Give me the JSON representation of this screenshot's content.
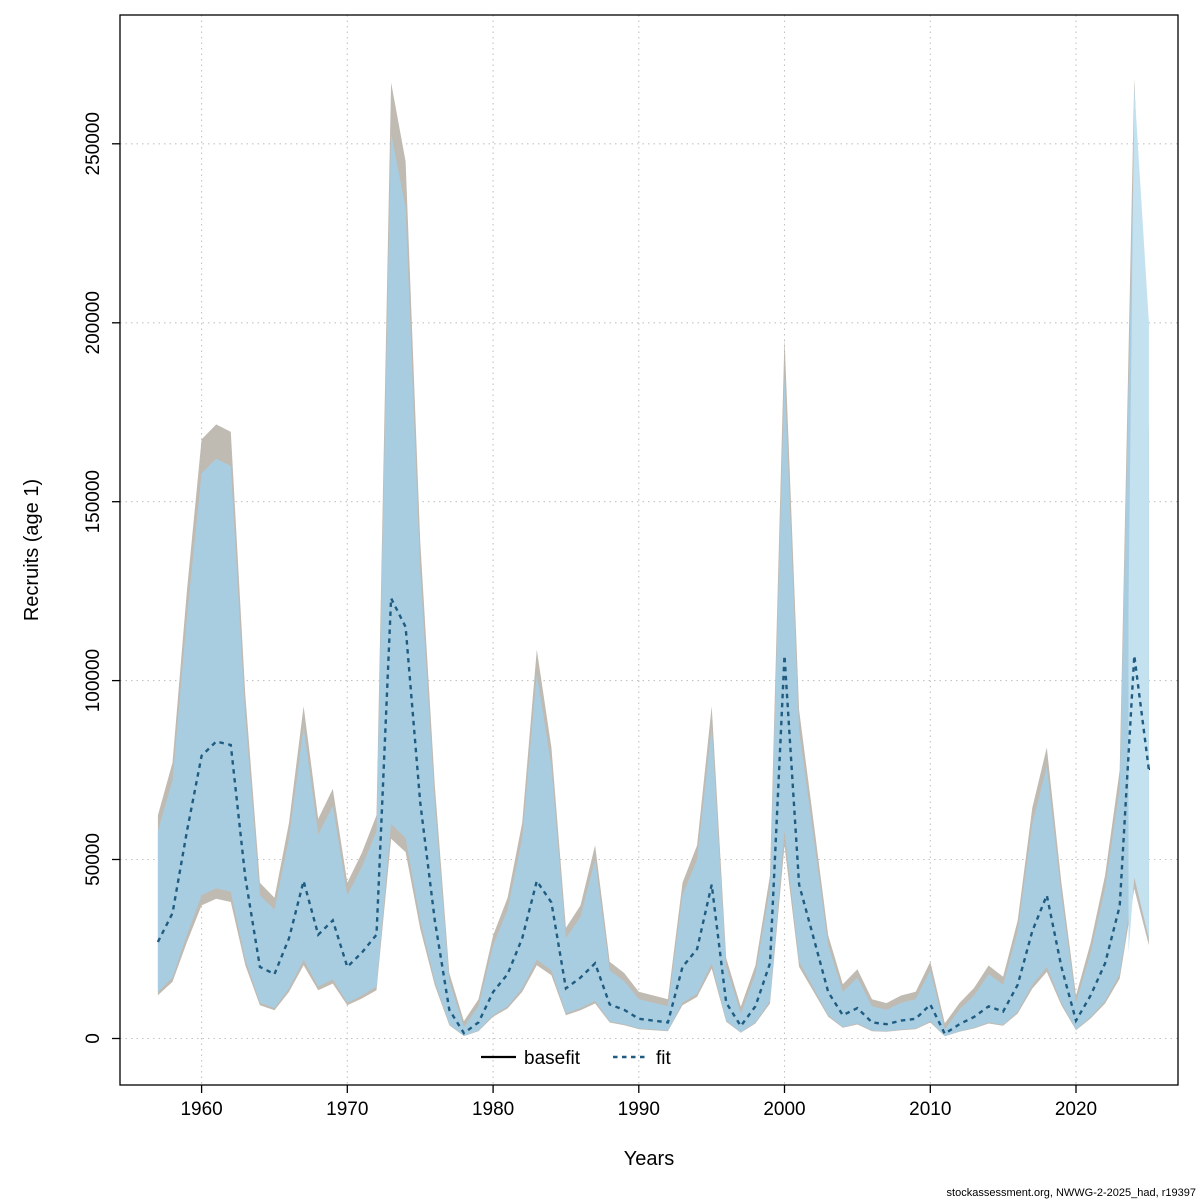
{
  "footer": {
    "text": "stockassessment.org, NWWG-2-2025_had, r19397"
  },
  "chart_data": {
    "type": "line",
    "title": "",
    "xlabel": "Years",
    "ylabel": "Recruits (age 1)",
    "grid": true,
    "legend_position": "bottom-center-inside",
    "legend": [
      "basefit",
      "fit"
    ],
    "x_ticks": [
      1960,
      1970,
      1980,
      1990,
      2000,
      2010,
      2020
    ],
    "y_ticks": [
      0,
      50000,
      100000,
      150000,
      200000,
      250000
    ],
    "xlim": [
      1954.4,
      2027.0
    ],
    "ylim": [
      -13000,
      286000
    ],
    "colors": {
      "band": "#a9cde0",
      "forecast_band": "#c4e1f0",
      "basefit_band": "#b8b2aa",
      "fit_line": "#1f5c82",
      "basefit_line": "#000000",
      "grid": "#c3c3c3"
    },
    "years": [
      1957,
      1958,
      1959,
      1960,
      1961,
      1962,
      1963,
      1964,
      1965,
      1966,
      1967,
      1968,
      1969,
      1970,
      1971,
      1972,
      1973,
      1974,
      1975,
      1976,
      1977,
      1978,
      1979,
      1980,
      1981,
      1982,
      1983,
      1984,
      1985,
      1986,
      1987,
      1988,
      1989,
      1990,
      1991,
      1992,
      1993,
      1994,
      1995,
      1996,
      1997,
      1998,
      1999,
      2000,
      2001,
      2002,
      2003,
      2004,
      2005,
      2006,
      2007,
      2008,
      2009,
      2010,
      2011,
      2012,
      2013,
      2014,
      2015,
      2016,
      2017,
      2018,
      2019,
      2020,
      2021,
      2022,
      2023,
      2024,
      2025
    ],
    "series": [
      {
        "name": "fit",
        "style": "dotted",
        "values": [
          27000,
          35000,
          58000,
          79000,
          83000,
          82000,
          45000,
          20000,
          18000,
          28000,
          44000,
          29000,
          33000,
          20000,
          24000,
          29000,
          123000,
          115000,
          66000,
          33000,
          8000,
          1500,
          4500,
          13000,
          18000,
          28000,
          44000,
          38000,
          14000,
          17000,
          21000,
          9500,
          8000,
          5500,
          5000,
          4500,
          20000,
          25000,
          43000,
          10000,
          3500,
          9000,
          21000,
          107000,
          43000,
          28000,
          13000,
          6500,
          8500,
          4500,
          4000,
          5000,
          5500,
          9500,
          1300,
          4000,
          6000,
          9000,
          7500,
          15000,
          30000,
          40000,
          20000,
          5000,
          12000,
          21000,
          37000,
          107000,
          75000
        ]
      },
      {
        "name": "basefit",
        "style": "solid",
        "values": [
          27000,
          35000,
          58000,
          79000,
          83000,
          82000,
          45000,
          20000,
          18000,
          28000,
          44000,
          29000,
          33000,
          20000,
          24000,
          29000,
          123000,
          115000,
          66000,
          33000,
          8000,
          1500,
          4500,
          13000,
          18000,
          28000,
          44000,
          38000,
          14000,
          17000,
          21000,
          9500,
          8000,
          5500,
          5000,
          4500,
          20000,
          25000,
          43000,
          10000,
          3500,
          9000,
          21000,
          107000,
          43000,
          28000,
          13000,
          6500,
          8500,
          4500,
          4000,
          5000,
          5500,
          9500,
          1300,
          4000,
          6000,
          9000,
          7500,
          15000,
          30000,
          40000,
          20000,
          5000,
          12000,
          21000,
          37000,
          107000,
          75000
        ]
      }
    ],
    "ci_lower": [
      13000,
      17000,
      29000,
      40000,
      42000,
      41000,
      22000,
      10000,
      8500,
      14000,
      22000,
      14500,
      16500,
      10000,
      12000,
      14500,
      60000,
      56000,
      33000,
      16000,
      4000,
      700,
      2200,
      6500,
      9000,
      14000,
      22000,
      19000,
      7000,
      8500,
      10500,
      4800,
      4000,
      2800,
      2500,
      2200,
      10000,
      12500,
      21000,
      5000,
      1700,
      4500,
      10500,
      58000,
      21500,
      14000,
      6500,
      3200,
      4200,
      2200,
      2000,
      2500,
      2800,
      4800,
      650,
      2000,
      3000,
      4500,
      3800,
      7500,
      15000,
      20000,
      10000,
      2500,
      6000,
      10500,
      18000,
      45000,
      28000
    ],
    "ci_upper": [
      58000,
      72000,
      118000,
      158000,
      162000,
      160000,
      90000,
      40000,
      36000,
      56000,
      87000,
      57000,
      65000,
      40000,
      48000,
      58000,
      253000,
      232000,
      131000,
      66000,
      16000,
      3200,
      9000,
      26000,
      36000,
      56000,
      102000,
      76000,
      28000,
      34000,
      50000,
      19000,
      16000,
      11000,
      10000,
      9000,
      40000,
      50000,
      87000,
      20000,
      7000,
      18000,
      42000,
      185000,
      86000,
      56000,
      26000,
      13000,
      17000,
      9000,
      8000,
      10000,
      11000,
      19000,
      2600,
      8000,
      12000,
      18000,
      15000,
      30000,
      60000,
      76000,
      40000,
      10000,
      24000,
      42000,
      70000,
      254000,
      160000
    ],
    "forecast": {
      "years": [
        2023.6,
        2024,
        2025
      ],
      "lower": [
        24000,
        45000,
        28000
      ],
      "upper": [
        120000,
        266000,
        200000
      ]
    },
    "basefit_band_scale": {
      "upper": 1.05,
      "lower": 0.93
    }
  }
}
